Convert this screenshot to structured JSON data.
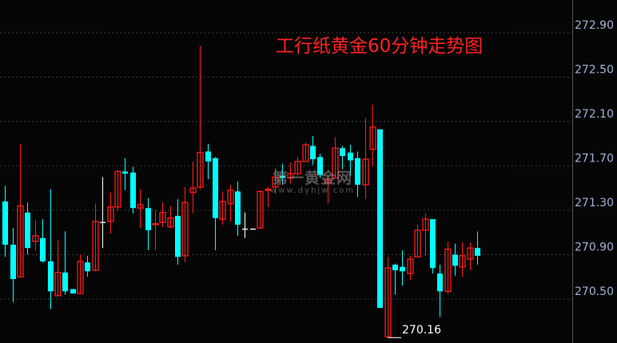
{
  "chart_data": {
    "type": "candlestick",
    "title": "工行纸黄金60分钟走势图",
    "ylim": [
      270.104,
      273.195
    ],
    "yticks": [
      "272.90",
      "272.50",
      "272.10",
      "271.70",
      "271.30",
      "270.90",
      "270.50"
    ],
    "ytick_values": [
      272.9,
      272.5,
      272.1,
      271.7,
      271.3,
      270.9,
      270.5
    ],
    "grid": true,
    "axis_side": "right",
    "min_annotation": {
      "label": "270.16",
      "value": 270.16,
      "index": 51
    },
    "candle_fields": [
      "open",
      "high",
      "low",
      "close"
    ],
    "candles": [
      [
        271.38,
        271.52,
        270.88,
        270.99
      ],
      [
        270.99,
        271.14,
        270.47,
        270.68
      ],
      [
        270.7,
        271.9,
        270.7,
        271.34
      ],
      [
        271.28,
        271.37,
        270.9,
        270.96
      ],
      [
        271.02,
        271.21,
        270.94,
        271.07
      ],
      [
        271.05,
        271.22,
        270.83,
        270.84
      ],
      [
        270.84,
        271.49,
        270.41,
        270.57
      ],
      [
        270.53,
        271.03,
        270.53,
        270.74
      ],
      [
        270.74,
        271.11,
        270.54,
        270.57
      ],
      [
        270.59,
        270.59,
        270.55,
        270.55
      ],
      [
        270.55,
        270.9,
        270.55,
        270.84
      ],
      [
        270.83,
        270.89,
        270.7,
        270.75
      ],
      [
        270.76,
        271.36,
        270.75,
        271.2
      ],
      [
        271.19,
        271.6,
        270.96,
        271.19
      ],
      [
        271.2,
        271.46,
        271.09,
        271.33
      ],
      [
        271.33,
        271.66,
        271.3,
        271.65
      ],
      [
        271.65,
        271.77,
        271.48,
        271.63
      ],
      [
        271.64,
        271.69,
        271.27,
        271.32
      ],
      [
        271.32,
        271.49,
        271.14,
        271.35
      ],
      [
        271.32,
        271.41,
        270.94,
        271.12
      ],
      [
        271.17,
        271.3,
        270.94,
        271.18
      ],
      [
        271.19,
        271.37,
        271.15,
        271.28
      ],
      [
        271.15,
        271.34,
        271.14,
        271.23
      ],
      [
        271.25,
        271.4,
        270.81,
        270.88
      ],
      [
        270.89,
        271.51,
        270.83,
        271.37
      ],
      [
        271.46,
        271.74,
        271.27,
        271.5
      ],
      [
        271.51,
        272.78,
        271.49,
        271.82
      ],
      [
        271.83,
        271.9,
        271.58,
        271.74
      ],
      [
        271.77,
        271.78,
        270.94,
        271.23
      ],
      [
        271.22,
        271.47,
        271.17,
        271.38
      ],
      [
        271.36,
        271.53,
        271.2,
        271.48
      ],
      [
        271.47,
        271.56,
        271.07,
        271.17
      ],
      [
        271.13,
        271.28,
        271.05,
        271.13
      ],
      [
        271.13,
        271.13,
        271.13,
        271.13
      ],
      [
        271.14,
        271.48,
        271.14,
        271.47
      ],
      [
        271.48,
        271.51,
        271.33,
        271.49
      ],
      [
        271.51,
        271.68,
        271.45,
        271.6
      ],
      [
        271.61,
        271.72,
        271.53,
        271.59
      ],
      [
        271.59,
        271.73,
        271.54,
        271.63
      ],
      [
        271.63,
        271.78,
        271.61,
        271.74
      ],
      [
        271.74,
        271.91,
        271.74,
        271.89
      ],
      [
        271.88,
        271.97,
        271.71,
        271.76
      ],
      [
        271.78,
        271.81,
        271.59,
        271.62
      ],
      [
        271.55,
        271.61,
        271.36,
        271.57
      ],
      [
        271.59,
        271.96,
        271.59,
        271.86
      ],
      [
        271.86,
        271.88,
        271.67,
        271.79
      ],
      [
        271.82,
        271.89,
        271.61,
        271.75
      ],
      [
        271.77,
        271.83,
        271.42,
        271.53
      ],
      [
        271.53,
        272.13,
        271.4,
        271.76
      ],
      [
        271.85,
        272.25,
        271.7,
        272.05
      ],
      [
        272.03,
        272.03,
        270.42,
        270.42
      ],
      [
        270.16,
        270.88,
        270.16,
        270.78
      ],
      [
        270.81,
        270.82,
        270.54,
        270.76
      ],
      [
        270.79,
        270.94,
        270.62,
        270.75
      ],
      [
        270.73,
        270.89,
        270.67,
        270.86
      ],
      [
        270.88,
        271.17,
        270.88,
        271.12
      ],
      [
        271.12,
        271.27,
        270.89,
        271.22
      ],
      [
        271.22,
        271.22,
        270.73,
        270.78
      ],
      [
        270.73,
        270.81,
        270.34,
        270.57
      ],
      [
        270.57,
        271.02,
        270.55,
        270.95
      ],
      [
        270.9,
        271.0,
        270.71,
        270.8
      ],
      [
        270.79,
        271.01,
        270.7,
        270.89
      ],
      [
        270.86,
        271.01,
        270.76,
        270.96
      ],
      [
        270.96,
        271.11,
        270.81,
        270.89
      ]
    ],
    "colors": {
      "up": "#ff1a1a",
      "down": "#00ffff",
      "doji": "#ffffff",
      "grid": "#3a3a3a",
      "axis_text": "#9fb0d0",
      "axis_line": "#555555",
      "title": "#ff2222"
    }
  },
  "watermark": {
    "name": "第一黄金网",
    "url": "www.dyhjw.com"
  }
}
